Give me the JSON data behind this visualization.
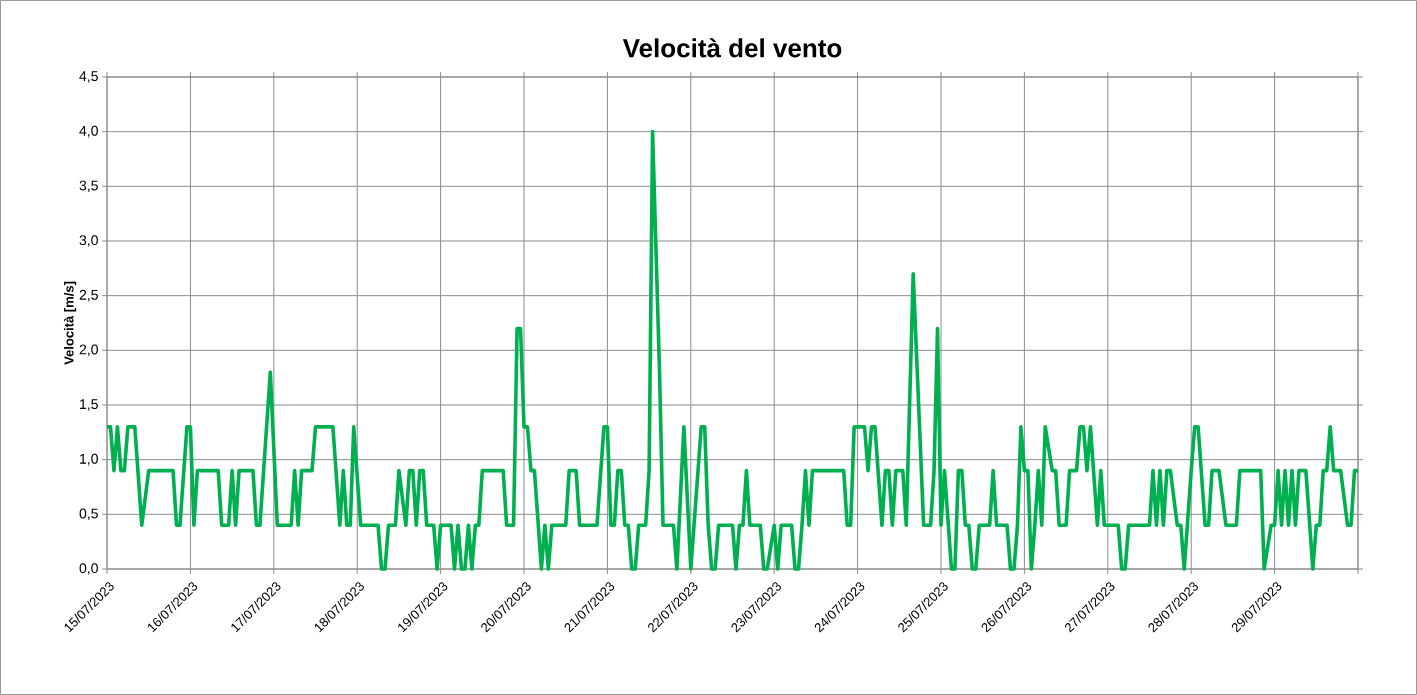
{
  "chart_data": {
    "type": "line",
    "title": "Velocità del vento",
    "ylabel": "Velocità [m/s]",
    "color": "#00b050",
    "grid": true,
    "line_style": "solid",
    "xlim": [
      "2023-07-15",
      "2023-07-30"
    ],
    "xticks": [
      {
        "value": "2023-07-15",
        "label": "15/07/2023"
      },
      {
        "value": "2023-07-16",
        "label": "16/07/2023"
      },
      {
        "value": "2023-07-17",
        "label": "17/07/2023"
      },
      {
        "value": "2023-07-18",
        "label": "18/07/2023"
      },
      {
        "value": "2023-07-19",
        "label": "19/07/2023"
      },
      {
        "value": "2023-07-20",
        "label": "20/07/2023"
      },
      {
        "value": "2023-07-21",
        "label": "21/07/2023"
      },
      {
        "value": "2023-07-22",
        "label": "22/07/2023"
      },
      {
        "value": "2023-07-23",
        "label": "23/07/2023"
      },
      {
        "value": "2023-07-24",
        "label": "24/07/2023"
      },
      {
        "value": "2023-07-25",
        "label": "25/07/2023"
      },
      {
        "value": "2023-07-26",
        "label": "26/07/2023"
      },
      {
        "value": "2023-07-27",
        "label": "27/07/2023"
      },
      {
        "value": "2023-07-28",
        "label": "28/07/2023"
      },
      {
        "value": "2023-07-29",
        "label": "29/07/2023"
      },
      {
        "value": "2023-07-30",
        "label": null
      }
    ],
    "ylim": [
      0,
      4.5
    ],
    "yticks": [
      {
        "value": 0,
        "label": "0,0"
      },
      {
        "value": 0.5,
        "label": "0,5"
      },
      {
        "value": 1,
        "label": "1,0"
      },
      {
        "value": 1.5,
        "label": "1,5"
      },
      {
        "value": 2,
        "label": "2,0"
      },
      {
        "value": 2.5,
        "label": "2,5"
      },
      {
        "value": 3,
        "label": "3,0"
      },
      {
        "value": 3.5,
        "label": "3,5"
      },
      {
        "value": 4,
        "label": "4,0"
      },
      {
        "value": 4.5,
        "label": "4,5"
      }
    ],
    "x": [
      "2023-07-15T00:00",
      "2023-07-15T01:00",
      "2023-07-15T02:00",
      "2023-07-15T03:00",
      "2023-07-15T04:00",
      "2023-07-15T05:00",
      "2023-07-15T06:00",
      "2023-07-15T08:00",
      "2023-07-15T10:00",
      "2023-07-15T12:00",
      "2023-07-15T19:00",
      "2023-07-15T20:00",
      "2023-07-15T21:00",
      "2023-07-15T23:00",
      "2023-07-16T00:00",
      "2023-07-16T01:00",
      "2023-07-16T02:00",
      "2023-07-16T08:00",
      "2023-07-16T09:00",
      "2023-07-16T11:00",
      "2023-07-16T12:00",
      "2023-07-16T13:00",
      "2023-07-16T14:00",
      "2023-07-16T18:00",
      "2023-07-16T19:00",
      "2023-07-16T20:00",
      "2023-07-16T23:00",
      "2023-07-17T01:00",
      "2023-07-17T05:00",
      "2023-07-17T06:00",
      "2023-07-17T07:00",
      "2023-07-17T08:00",
      "2023-07-17T11:00",
      "2023-07-17T12:00",
      "2023-07-17T17:00",
      "2023-07-17T19:00",
      "2023-07-17T20:00",
      "2023-07-17T21:00",
      "2023-07-17T22:00",
      "2023-07-17T23:00",
      "2023-07-18T01:00",
      "2023-07-18T06:00",
      "2023-07-18T07:00",
      "2023-07-18T08:00",
      "2023-07-18T09:00",
      "2023-07-18T11:00",
      "2023-07-18T12:00",
      "2023-07-18T14:00",
      "2023-07-18T15:00",
      "2023-07-18T16:00",
      "2023-07-18T17:00",
      "2023-07-18T18:00",
      "2023-07-18T19:00",
      "2023-07-18T20:00",
      "2023-07-18T22:00",
      "2023-07-18T23:00",
      "2023-07-19T00:00",
      "2023-07-19T03:00",
      "2023-07-19T04:00",
      "2023-07-19T05:00",
      "2023-07-19T06:00",
      "2023-07-19T07:00",
      "2023-07-19T08:00",
      "2023-07-19T09:00",
      "2023-07-19T10:00",
      "2023-07-19T11:00",
      "2023-07-19T12:00",
      "2023-07-19T18:00",
      "2023-07-19T19:00",
      "2023-07-19T21:00",
      "2023-07-19T22:00",
      "2023-07-19T23:00",
      "2023-07-20T00:00",
      "2023-07-20T01:00",
      "2023-07-20T02:00",
      "2023-07-20T03:00",
      "2023-07-20T05:00",
      "2023-07-20T06:00",
      "2023-07-20T07:00",
      "2023-07-20T08:00",
      "2023-07-20T12:00",
      "2023-07-20T13:00",
      "2023-07-20T15:00",
      "2023-07-20T16:00",
      "2023-07-20T21:00",
      "2023-07-20T23:00",
      "2023-07-21T00:00",
      "2023-07-21T01:00",
      "2023-07-21T02:00",
      "2023-07-21T03:00",
      "2023-07-21T04:00",
      "2023-07-21T05:00",
      "2023-07-21T06:00",
      "2023-07-21T07:00",
      "2023-07-21T08:00",
      "2023-07-21T09:00",
      "2023-07-21T11:00",
      "2023-07-21T12:00",
      "2023-07-21T13:00",
      "2023-07-21T15:00",
      "2023-07-21T16:00",
      "2023-07-21T19:00",
      "2023-07-21T20:00",
      "2023-07-21T22:00",
      "2023-07-22T00:00",
      "2023-07-22T03:00",
      "2023-07-22T04:00",
      "2023-07-22T05:00",
      "2023-07-22T06:00",
      "2023-07-22T07:00",
      "2023-07-22T08:00",
      "2023-07-22T12:00",
      "2023-07-22T13:00",
      "2023-07-22T14:00",
      "2023-07-22T15:00",
      "2023-07-22T16:00",
      "2023-07-22T17:00",
      "2023-07-22T20:00",
      "2023-07-22T21:00",
      "2023-07-22T22:00",
      "2023-07-23T00:00",
      "2023-07-23T01:00",
      "2023-07-23T02:00",
      "2023-07-23T05:00",
      "2023-07-23T06:00",
      "2023-07-23T07:00",
      "2023-07-23T08:00",
      "2023-07-23T09:00",
      "2023-07-23T10:00",
      "2023-07-23T11:00",
      "2023-07-23T20:00",
      "2023-07-23T21:00",
      "2023-07-23T22:00",
      "2023-07-23T23:00",
      "2023-07-24T02:00",
      "2023-07-24T03:00",
      "2023-07-24T04:00",
      "2023-07-24T05:00",
      "2023-07-24T07:00",
      "2023-07-24T08:00",
      "2023-07-24T09:00",
      "2023-07-24T10:00",
      "2023-07-24T11:00",
      "2023-07-24T13:00",
      "2023-07-24T14:00",
      "2023-07-24T16:00",
      "2023-07-24T19:00",
      "2023-07-24T21:00",
      "2023-07-24T22:00",
      "2023-07-24T23:00",
      "2023-07-25T00:00",
      "2023-07-25T01:00",
      "2023-07-25T03:00",
      "2023-07-25T04:00",
      "2023-07-25T05:00",
      "2023-07-25T06:00",
      "2023-07-25T07:00",
      "2023-07-25T08:00",
      "2023-07-25T09:00",
      "2023-07-25T10:00",
      "2023-07-25T11:00",
      "2023-07-25T14:00",
      "2023-07-25T15:00",
      "2023-07-25T16:00",
      "2023-07-25T19:00",
      "2023-07-25T20:00",
      "2023-07-25T21:00",
      "2023-07-25T22:00",
      "2023-07-25T23:00",
      "2023-07-26T00:00",
      "2023-07-26T01:00",
      "2023-07-26T02:00",
      "2023-07-26T03:00",
      "2023-07-26T04:00",
      "2023-07-26T05:00",
      "2023-07-26T06:00",
      "2023-07-26T08:00",
      "2023-07-26T09:00",
      "2023-07-26T10:00",
      "2023-07-26T12:00",
      "2023-07-26T13:00",
      "2023-07-26T15:00",
      "2023-07-26T16:00",
      "2023-07-26T17:00",
      "2023-07-26T18:00",
      "2023-07-26T19:00",
      "2023-07-26T21:00",
      "2023-07-26T22:00",
      "2023-07-26T23:00",
      "2023-07-27T03:00",
      "2023-07-27T04:00",
      "2023-07-27T05:00",
      "2023-07-27T06:00",
      "2023-07-27T12:00",
      "2023-07-27T13:00",
      "2023-07-27T14:00",
      "2023-07-27T15:00",
      "2023-07-27T16:00",
      "2023-07-27T17:00",
      "2023-07-27T18:00",
      "2023-07-27T20:00",
      "2023-07-27T21:00",
      "2023-07-27T22:00",
      "2023-07-28T00:00",
      "2023-07-28T01:00",
      "2023-07-28T02:00",
      "2023-07-28T04:00",
      "2023-07-28T05:00",
      "2023-07-28T06:00",
      "2023-07-28T08:00",
      "2023-07-28T10:00",
      "2023-07-28T13:00",
      "2023-07-28T14:00",
      "2023-07-28T20:00",
      "2023-07-28T21:00",
      "2023-07-28T23:00",
      "2023-07-29T00:00",
      "2023-07-29T01:00",
      "2023-07-29T02:00",
      "2023-07-29T03:00",
      "2023-07-29T04:00",
      "2023-07-29T05:00",
      "2023-07-29T06:00",
      "2023-07-29T07:00",
      "2023-07-29T09:00",
      "2023-07-29T11:00",
      "2023-07-29T12:00",
      "2023-07-29T13:00",
      "2023-07-29T14:00",
      "2023-07-29T15:00",
      "2023-07-29T16:00",
      "2023-07-29T17:00",
      "2023-07-29T19:00",
      "2023-07-29T21:00",
      "2023-07-29T22:00",
      "2023-07-29T23:00",
      "2023-07-30T00:00"
    ],
    "values": [
      1.3,
      1.3,
      0.9,
      1.3,
      0.9,
      0.9,
      1.3,
      1.3,
      0.4,
      0.9,
      0.9,
      0.4,
      0.4,
      1.3,
      1.3,
      0.4,
      0.9,
      0.9,
      0.4,
      0.4,
      0.9,
      0.4,
      0.9,
      0.9,
      0.4,
      0.4,
      1.8,
      0.4,
      0.4,
      0.9,
      0.4,
      0.9,
      0.9,
      1.3,
      1.3,
      0.4,
      0.9,
      0.4,
      0.4,
      1.3,
      0.4,
      0.4,
      0,
      0,
      0.4,
      0.4,
      0.9,
      0.4,
      0.9,
      0.9,
      0.4,
      0.9,
      0.9,
      0.4,
      0.4,
      0,
      0.4,
      0.4,
      0,
      0.4,
      0,
      0,
      0.4,
      0,
      0.4,
      0.4,
      0.9,
      0.9,
      0.4,
      0.4,
      2.2,
      2.2,
      1.3,
      1.3,
      0.9,
      0.9,
      0,
      0.4,
      0,
      0.4,
      0.4,
      0.9,
      0.9,
      0.4,
      0.4,
      1.3,
      1.3,
      0.4,
      0.4,
      0.9,
      0.9,
      0.4,
      0.4,
      0,
      0,
      0.4,
      0.4,
      0.9,
      4.0,
      1.8,
      0.4,
      0.4,
      0,
      1.3,
      0,
      1.3,
      1.3,
      0.4,
      0,
      0,
      0.4,
      0.4,
      0,
      0.4,
      0.4,
      0.9,
      0.4,
      0.4,
      0,
      0,
      0.4,
      0,
      0.4,
      0.4,
      0,
      0,
      0.4,
      0.9,
      0.4,
      0.9,
      0.9,
      0.4,
      0.4,
      1.3,
      1.3,
      0.9,
      1.3,
      1.3,
      0.4,
      0.9,
      0.9,
      0.4,
      0.9,
      0.9,
      0.4,
      2.7,
      0.4,
      0.4,
      0.9,
      2.2,
      0.4,
      0.9,
      0,
      0,
      0.9,
      0.9,
      0.4,
      0.4,
      0,
      0,
      0.4,
      0.4,
      0.9,
      0.4,
      0.4,
      0,
      0,
      0.4,
      1.3,
      0.9,
      0.9,
      0,
      0.4,
      0.9,
      0.4,
      1.3,
      0.9,
      0.9,
      0.4,
      0.4,
      0.9,
      0.9,
      1.3,
      1.3,
      0.9,
      1.3,
      0.4,
      0.9,
      0.4,
      0.4,
      0,
      0,
      0.4,
      0.4,
      0.9,
      0.4,
      0.9,
      0.4,
      0.9,
      0.9,
      0.4,
      0.4,
      0,
      0.9,
      1.3,
      1.3,
      0.4,
      0.4,
      0.9,
      0.9,
      0.4,
      0.4,
      0.9,
      0.9,
      0,
      0.4,
      0.4,
      0.9,
      0.4,
      0.9,
      0.4,
      0.9,
      0.4,
      0.9,
      0.9,
      0,
      0.4,
      0.4,
      0.9,
      0.9,
      1.3,
      0.9,
      0.9,
      0.4,
      0.4,
      0.9,
      0.9
    ]
  }
}
